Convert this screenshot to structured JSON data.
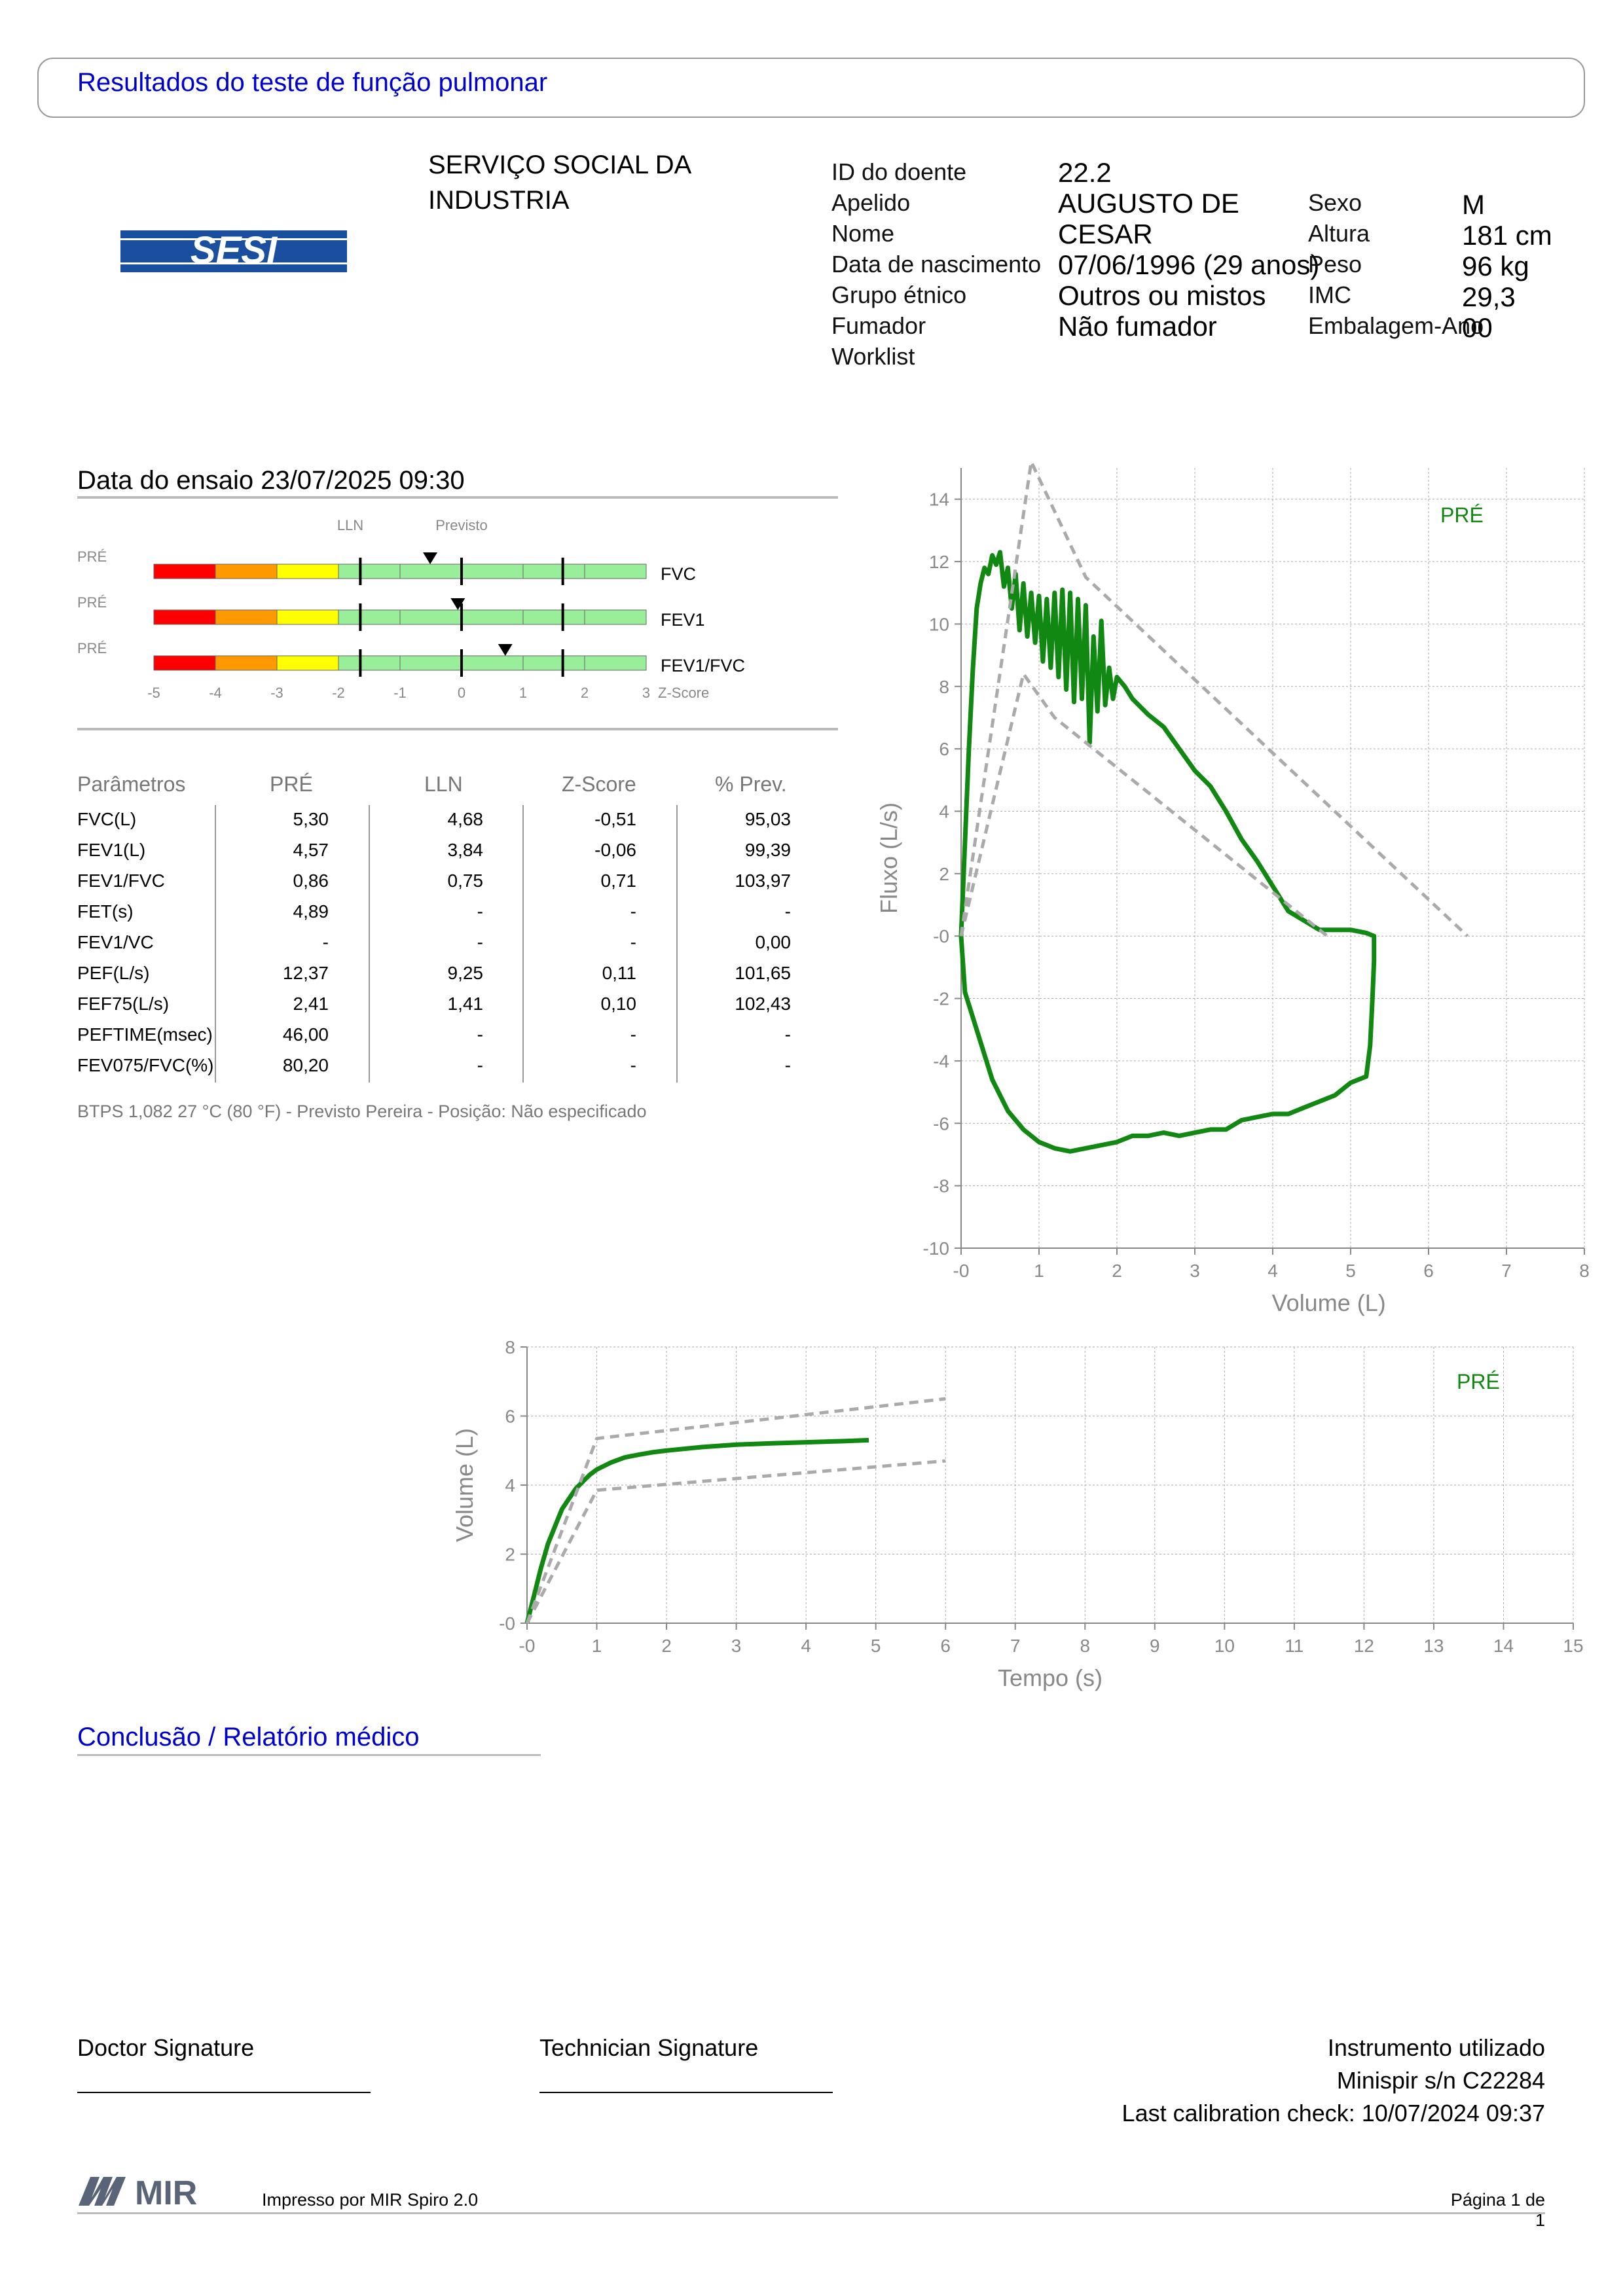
{
  "header": {
    "title": "Resultados do teste de função pulmonar"
  },
  "logo": {
    "text": "SESI"
  },
  "organization": {
    "line1": "SERVIÇO SOCIAL DA",
    "line2": "INDUSTRIA"
  },
  "patient": {
    "id_label": "ID do doente",
    "id": "22.2",
    "surname_label": "Apelido",
    "surname": "AUGUSTO DE",
    "name_label": "Nome",
    "name": "CESAR",
    "dob_label": "Data de nascimento",
    "dob": "07/06/1996 (29 anos)",
    "ethnic_label": "Grupo étnico",
    "ethnic": "Outros ou mistos",
    "smoker_label": "Fumador",
    "smoker": "Não fumador",
    "worklist_label": "Worklist",
    "sex_label": "Sexo",
    "sex": "M",
    "height_label": "Altura",
    "height": "181 cm",
    "weight_label": "Peso",
    "weight": "96 kg",
    "bmi_label": "IMC",
    "bmi": "29,3",
    "packyear_label": "Embalagem-Ano",
    "packyear": "00"
  },
  "test_date": "Data do ensaio 23/07/2025 09:30",
  "zscore_chart": {
    "lln_label": "LLN",
    "predicted_label": "Previsto",
    "pre_label": "PRÉ",
    "axis_label": "Z-Score",
    "ticks": [
      "-5",
      "-4",
      "-3",
      "-2",
      "-1",
      "0",
      "1",
      "2",
      "3"
    ],
    "zone_colors": [
      "#ff0000",
      "#ff9900",
      "#ffff00",
      "#99ee99"
    ],
    "rows": [
      {
        "label": "FVC",
        "z": -0.51
      },
      {
        "label": "FEV1",
        "z": -0.06
      },
      {
        "label": "FEV1/FVC",
        "z": 0.71
      }
    ]
  },
  "params_table": {
    "headers": [
      "Parâmetros",
      "PRÉ",
      "LLN",
      "Z-Score",
      "% Prev."
    ],
    "rows": [
      [
        "FVC(L)",
        "5,30",
        "4,68",
        "-0,51",
        "95,03"
      ],
      [
        "FEV1(L)",
        "4,57",
        "3,84",
        "-0,06",
        "99,39"
      ],
      [
        "FEV1/FVC",
        "0,86",
        "0,75",
        "0,71",
        "103,97"
      ],
      [
        "FET(s)",
        "4,89",
        "-",
        "-",
        "-"
      ],
      [
        "FEV1/VC",
        "-",
        "-",
        "-",
        "0,00"
      ],
      [
        "PEF(L/s)",
        "12,37",
        "9,25",
        "0,11",
        "101,65"
      ],
      [
        "FEF75(L/s)",
        "2,41",
        "1,41",
        "0,10",
        "102,43"
      ],
      [
        "PEFTIME(msec)",
        "46,00",
        "-",
        "-",
        "-"
      ],
      [
        "FEV075/FVC(%)",
        "80,20",
        "-",
        "-",
        "-"
      ]
    ]
  },
  "btps_note": "BTPS 1,082 27 °C (80 °F) - Previsto Pereira - Posição: Não especificado",
  "chart_data": [
    {
      "type": "line",
      "title": "",
      "xlabel": "Volume (L)",
      "ylabel": "Fluxo (L/s)",
      "xlim": [
        0,
        8
      ],
      "ylim": [
        -10,
        15
      ],
      "xticks": [
        "-0",
        "1",
        "2",
        "3",
        "4",
        "5",
        "6",
        "7",
        "8"
      ],
      "yticks": [
        "14",
        "12",
        "10",
        "8",
        "6",
        "4",
        "2",
        "-0",
        "-2",
        "-4",
        "-6",
        "-8",
        "-10"
      ],
      "legend": "PRÉ",
      "grid": true,
      "colors": {
        "measured": "#118811",
        "predicted": "#aaaaaa"
      },
      "series": [
        {
          "name": "PRÉ",
          "x": [
            0,
            0.05,
            0.1,
            0.15,
            0.2,
            0.25,
            0.3,
            0.35,
            0.4,
            0.45,
            0.5,
            0.55,
            0.6,
            0.65,
            0.7,
            0.75,
            0.8,
            0.85,
            0.9,
            0.95,
            1.0,
            1.05,
            1.1,
            1.15,
            1.2,
            1.25,
            1.3,
            1.35,
            1.4,
            1.45,
            1.5,
            1.55,
            1.6,
            1.65,
            1.7,
            1.75,
            1.8,
            1.85,
            1.9,
            1.95,
            2.0,
            2.1,
            2.2,
            2.4,
            2.6,
            2.8,
            3.0,
            3.2,
            3.4,
            3.6,
            3.8,
            4.0,
            4.2,
            4.4,
            4.6,
            4.8,
            5.0,
            5.2,
            5.3,
            5.3,
            5.28,
            5.25,
            5.2,
            5.1,
            5.0,
            4.8,
            4.6,
            4.4,
            4.2,
            4.0,
            3.8,
            3.6,
            3.4,
            3.2,
            3.0,
            2.8,
            2.6,
            2.4,
            2.2,
            2.0,
            1.8,
            1.6,
            1.4,
            1.2,
            1.0,
            0.8,
            0.6,
            0.4,
            0.2,
            0.1,
            0.05,
            0
          ],
          "y": [
            0,
            3,
            6,
            8.5,
            10.5,
            11.3,
            11.8,
            11.6,
            12.2,
            11.9,
            12.3,
            11.2,
            11.8,
            10.5,
            11.6,
            9.8,
            11.3,
            9.6,
            11,
            9.4,
            10.9,
            8.8,
            10.8,
            8.6,
            11,
            8.3,
            11.1,
            7.9,
            11,
            7.5,
            10.8,
            7.6,
            10.6,
            6.2,
            9.6,
            7.2,
            10.1,
            7.4,
            8.6,
            7.6,
            8.3,
            8.0,
            7.6,
            7.1,
            6.7,
            6.0,
            5.3,
            4.8,
            4.0,
            3.1,
            2.4,
            1.6,
            0.8,
            0.5,
            0.2,
            0.2,
            0.2,
            0.1,
            0,
            -0.8,
            -2,
            -3.5,
            -4.5,
            -4.6,
            -4.7,
            -5.1,
            -5.3,
            -5.5,
            -5.7,
            -5.7,
            -5.8,
            -5.9,
            -6.2,
            -6.2,
            -6.3,
            -6.4,
            -6.3,
            -6.4,
            -6.4,
            -6.6,
            -6.7,
            -6.8,
            -6.9,
            -6.8,
            -6.6,
            -6.2,
            -5.6,
            -4.6,
            -3.0,
            -2.2,
            -1.8,
            0
          ]
        },
        {
          "name": "upper",
          "x": [
            0,
            0.9,
            1.6,
            6.5
          ],
          "y": [
            0,
            15.2,
            11.5,
            0
          ]
        },
        {
          "name": "lower",
          "x": [
            0,
            0.8,
            1.2,
            4.7
          ],
          "y": [
            0,
            8.4,
            7.0,
            0
          ]
        }
      ]
    },
    {
      "type": "line",
      "title": "",
      "xlabel": "Tempo (s)",
      "ylabel": "Volume (L)",
      "xlim": [
        0,
        15
      ],
      "ylim": [
        0,
        8
      ],
      "xticks": [
        "-0",
        "1",
        "2",
        "3",
        "4",
        "5",
        "6",
        "7",
        "8",
        "9",
        "10",
        "11",
        "12",
        "13",
        "14",
        "15"
      ],
      "yticks": [
        "8",
        "6",
        "4",
        "2",
        "-0"
      ],
      "legend": "PRÉ",
      "grid": true,
      "colors": {
        "measured": "#118811",
        "predicted": "#aaaaaa"
      },
      "series": [
        {
          "name": "PRÉ",
          "x": [
            0,
            0.1,
            0.2,
            0.3,
            0.4,
            0.5,
            0.6,
            0.7,
            0.8,
            0.9,
            1.0,
            1.2,
            1.4,
            1.6,
            1.8,
            2.0,
            2.5,
            3.0,
            3.5,
            4.0,
            4.5,
            4.9
          ],
          "y": [
            0,
            0.8,
            1.6,
            2.3,
            2.8,
            3.3,
            3.6,
            3.9,
            4.1,
            4.3,
            4.45,
            4.65,
            4.8,
            4.88,
            4.95,
            5.0,
            5.1,
            5.17,
            5.21,
            5.24,
            5.27,
            5.3
          ]
        },
        {
          "name": "upper",
          "x": [
            0,
            1,
            6
          ],
          "y": [
            0,
            5.35,
            6.5
          ]
        },
        {
          "name": "lower",
          "x": [
            0,
            1,
            6
          ],
          "y": [
            0,
            3.85,
            4.7
          ]
        }
      ]
    }
  ],
  "conclusion_title": "Conclusão / Relatório médico",
  "signatures": {
    "doctor": "Doctor Signature",
    "technician": "Technician Signature"
  },
  "instrument": {
    "title": "Instrumento utilizado",
    "device": "Minispir s/n C22284",
    "calibration": "Last calibration check: 10/07/2024 09:37"
  },
  "footer": {
    "brand": "MIR",
    "printed_by": "Impresso por MIR Spiro 2.0",
    "page": "Página 1 de 1"
  }
}
